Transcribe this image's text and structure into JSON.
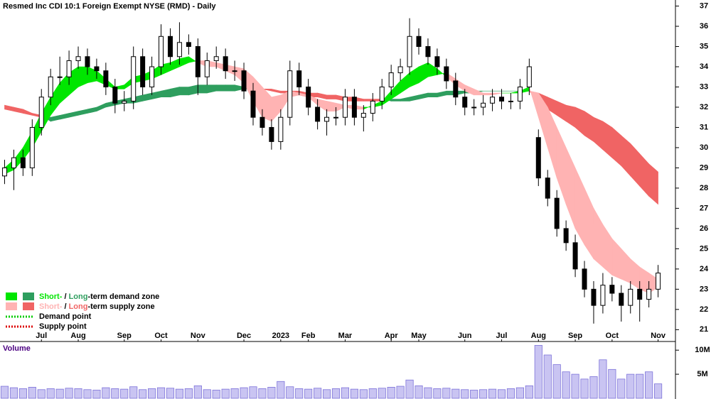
{
  "chart_data": {
    "type": "candlestick",
    "title": "Resmed Inc CDI 10:1 Foreign Exempt NYSE (RMD) - Daily",
    "categories": [
      null,
      null,
      null,
      null,
      "Jul",
      null,
      null,
      null,
      "Aug",
      null,
      null,
      null,
      null,
      "Sep",
      null,
      null,
      null,
      "Oct",
      null,
      null,
      null,
      "Nov",
      null,
      null,
      null,
      null,
      "Dec",
      null,
      null,
      null,
      "2023",
      null,
      null,
      "Feb",
      null,
      null,
      null,
      "Mar",
      null,
      null,
      null,
      null,
      "Apr",
      null,
      null,
      "May",
      null,
      null,
      null,
      null,
      "Jun",
      null,
      null,
      null,
      "Jul",
      null,
      null,
      null,
      "Aug",
      null,
      null,
      null,
      "Sep",
      null,
      null,
      null,
      "Oct",
      null,
      null,
      null,
      null,
      "Nov"
    ],
    "open": [
      28.6,
      29,
      29.5,
      29,
      31,
      32.5,
      33.5,
      33.5,
      34.3,
      34.5,
      34,
      33.8,
      33,
      32.2,
      32.3,
      34.5,
      33,
      34,
      35.5,
      34.5,
      35.2,
      35,
      33.5,
      34.3,
      34.5,
      33.8,
      33.8,
      32.8,
      31.5,
      31,
      30.3,
      31.5,
      33.8,
      33,
      32,
      31.3,
      31.5,
      31.5,
      32.5,
      31.5,
      31.7,
      32.3,
      33,
      33.7,
      34,
      35.5,
      35,
      34.5,
      34,
      33.3,
      32.5,
      32,
      32,
      32.2,
      32.5,
      32.3,
      32.3,
      33,
      30.5,
      28.5,
      27.5,
      26,
      25.3,
      24,
      23,
      22.2,
      23.2,
      22.8,
      22.2,
      23,
      22.5,
      23
    ],
    "high": [
      29.4,
      29.9,
      29.9,
      31.4,
      32.9,
      33.9,
      34.5,
      34.8,
      35,
      34.9,
      34.4,
      34.2,
      33.4,
      32.8,
      35,
      34.9,
      34.5,
      36.1,
      35.9,
      36.2,
      35.6,
      35.4,
      34.7,
      35,
      34.9,
      34.3,
      34.2,
      33.2,
      31.9,
      31.4,
      31.9,
      34.3,
      34.2,
      33.4,
      32.4,
      31.9,
      32,
      32.9,
      32.9,
      32.1,
      32.7,
      33.4,
      34.1,
      34.4,
      36.4,
      35.9,
      35.4,
      34.9,
      34.4,
      33.7,
      32.9,
      32.4,
      32.6,
      32.9,
      32.9,
      32.7,
      33.4,
      34.4,
      30.9,
      28.9,
      27.9,
      26.4,
      25.7,
      24.4,
      23.4,
      23.8,
      23.6,
      23.2,
      23.4,
      23.4,
      23.4,
      24.2
    ],
    "low": [
      28.2,
      27.9,
      28.6,
      28.6,
      30.6,
      32.1,
      33.1,
      33.1,
      33.9,
      33.6,
      33.4,
      32.6,
      31.7,
      31.8,
      31.9,
      32.6,
      32.6,
      33.6,
      34.1,
      34.1,
      34.6,
      32.6,
      33.1,
      33.9,
      33.4,
      33.3,
      32.4,
      31.1,
      30.6,
      29.9,
      29.9,
      31.1,
      32.6,
      31.6,
      30.9,
      30.6,
      31.1,
      31.1,
      31.1,
      30.8,
      31.3,
      31.9,
      32.6,
      33.3,
      33.6,
      34.6,
      34.1,
      33.6,
      32.9,
      32.1,
      31.6,
      31.6,
      31.6,
      31.8,
      31.9,
      31.9,
      31.9,
      32.6,
      28.1,
      27.1,
      25.6,
      24.9,
      23.6,
      22.6,
      21.3,
      21.8,
      22.4,
      21.4,
      21.8,
      21.4,
      22.1,
      22.6
    ],
    "close": [
      29,
      29.5,
      29,
      31,
      32.5,
      33.5,
      33.5,
      34.3,
      34.5,
      34,
      33.8,
      33,
      32.2,
      32.3,
      34.5,
      33,
      34,
      35.5,
      34.5,
      35.2,
      35,
      33.5,
      34.3,
      34.5,
      33.8,
      33.8,
      32.8,
      31.5,
      31,
      30.3,
      31.5,
      33.8,
      33,
      32,
      31.3,
      31.5,
      31.5,
      32.5,
      31.5,
      31.7,
      32.3,
      33,
      33.7,
      34,
      35.5,
      35,
      34.5,
      34,
      33.3,
      32.5,
      32,
      32,
      32.2,
      32.5,
      32.3,
      32.3,
      33,
      34,
      28.5,
      27.5,
      26,
      25.3,
      24,
      23,
      22.2,
      23.2,
      22.8,
      22.2,
      23,
      22.5,
      23,
      23.8
    ],
    "up_color": "#ffffff",
    "down_color": "#000000",
    "short_zone": {
      "fast": [
        29,
        29.4,
        30,
        30.8,
        31.7,
        32.5,
        33.2,
        33.7,
        34,
        34,
        33.8,
        33.4,
        33,
        33.1,
        33.5,
        33.6,
        33.8,
        34.1,
        34.2,
        34.4,
        34.5,
        34.2,
        34,
        34,
        33.8,
        33.6,
        33.2,
        32.3,
        31.5,
        31.3,
        31.8,
        32.5,
        32.6,
        32.5,
        32.1,
        31.8,
        31.8,
        32,
        31.9,
        31.9,
        32.1,
        32.3,
        32.8,
        33.3,
        33.7,
        34,
        34.2,
        33.9,
        33.5,
        33.1,
        32.8,
        32.6,
        32.6,
        32.6,
        32.7,
        32.7,
        32.8,
        33,
        31.5,
        30,
        28.5,
        27.2,
        26,
        25.2,
        24.5,
        24.1,
        23.7,
        23.5,
        23.3,
        23,
        22.8,
        23.1
      ],
      "slow": [
        28.7,
        28.9,
        29.4,
        30,
        30.8,
        31.6,
        32.2,
        32.6,
        33,
        33.2,
        33.3,
        33.1,
        32.9,
        32.9,
        33.2,
        33.3,
        33.4,
        33.6,
        33.8,
        34,
        34.2,
        34.3,
        34.3,
        34.2,
        34.1,
        34,
        33.9,
        33.5,
        33,
        32.5,
        32.6,
        32.8,
        32.7,
        32.6,
        32.4,
        32.3,
        32.2,
        32.1,
        32.1,
        32,
        32,
        32.1,
        32.4,
        32.7,
        33,
        33.2,
        33.5,
        33.6,
        33.7,
        33.4,
        33.1,
        32.9,
        32.7,
        32.7,
        32.7,
        32.7,
        32.7,
        32.8,
        32.7,
        32,
        31,
        30,
        29,
        28,
        27,
        26.2,
        25.5,
        25,
        24.5,
        24.1,
        23.8,
        23.5
      ],
      "demand_color": "#00e600",
      "supply_color": "#ffb3b3"
    },
    "long_zone": {
      "fast": [
        31.9,
        31.8,
        31.7,
        31.6,
        31.5,
        31.5,
        31.6,
        31.7,
        31.8,
        31.9,
        32,
        32.2,
        32.3,
        32.4,
        32.5,
        32.6,
        32.7,
        32.8,
        32.9,
        33,
        33,
        33.1,
        33.1,
        33.1,
        33.1,
        33.1,
        33,
        33,
        32.9,
        32.8,
        32.7,
        32.7,
        32.6,
        32.5,
        32.5,
        32.4,
        32.4,
        32.3,
        32.3,
        32.3,
        32.3,
        32.3,
        32.4,
        32.4,
        32.5,
        32.6,
        32.7,
        32.7,
        32.8,
        32.8,
        32.8,
        32.8,
        32.8,
        32.8,
        32.8,
        32.8,
        32.8,
        32.8,
        32.3,
        31.9,
        31.6,
        31.3,
        31,
        30.6,
        30.3,
        29.9,
        29.5,
        29.1,
        28.6,
        28.1,
        27.6,
        27.2
      ],
      "slow": [
        32.1,
        32,
        31.9,
        31.7,
        31.6,
        31.3,
        31.4,
        31.5,
        31.6,
        31.7,
        31.8,
        32,
        32.1,
        32.2,
        32.2,
        32.3,
        32.4,
        32.5,
        32.5,
        32.6,
        32.6,
        32.7,
        32.7,
        32.8,
        32.8,
        32.8,
        32.9,
        32.9,
        32.9,
        32.9,
        32.8,
        32.8,
        32.8,
        32.7,
        32.7,
        32.6,
        32.6,
        32.5,
        32.5,
        32.4,
        32.4,
        32.4,
        32.3,
        32.3,
        32.3,
        32.4,
        32.5,
        32.5,
        32.6,
        32.6,
        32.7,
        32.7,
        32.8,
        32.8,
        32.8,
        32.8,
        32.8,
        32.8,
        32.7,
        32.5,
        32.3,
        32.1,
        32,
        31.8,
        31.5,
        31.3,
        31,
        30.6,
        30.2,
        29.7,
        29.2,
        28.8
      ],
      "demand_color": "#2e9e5e",
      "supply_color": "#f06464"
    },
    "ylim": [
      20.45,
      37.3
    ],
    "yticks": [
      21,
      22,
      23,
      24,
      25,
      26,
      27,
      28,
      29,
      30,
      31,
      32,
      33,
      34,
      35,
      36,
      37
    ],
    "volume": {
      "label": "Volume",
      "values": [
        2500000,
        2200000,
        2000000,
        2300000,
        1800000,
        2000000,
        1900000,
        2100000,
        2000000,
        1800000,
        1700000,
        2200000,
        2000000,
        1900000,
        2400000,
        1800000,
        2000000,
        2200000,
        2100000,
        1900000,
        2000000,
        2600000,
        1800000,
        1700000,
        1900000,
        2000000,
        2200000,
        2400000,
        2000000,
        2300000,
        3500000,
        2400000,
        2000000,
        1900000,
        2100000,
        1800000,
        2000000,
        2200000,
        1900000,
        1800000,
        2000000,
        2100000,
        2300000,
        2500000,
        3800000,
        2600000,
        2200000,
        2000000,
        2100000,
        1900000,
        1800000,
        1700000,
        1800000,
        1900000,
        1800000,
        2000000,
        2200000,
        2600000,
        11000000,
        9000000,
        7000000,
        5500000,
        5000000,
        4000000,
        4500000,
        8000000,
        6000000,
        4000000,
        5000000,
        5000000,
        5500000,
        3000000
      ],
      "color": "#7d73d9",
      "ylim": [
        0,
        11800000
      ],
      "yticks": [
        {
          "value": 5000000,
          "label": "5M"
        },
        {
          "value": 10000000,
          "label": "10M"
        }
      ]
    },
    "legend": [
      {
        "short": "Short-",
        "sep": " / ",
        "long": "Long",
        "rest": "-term demand zone"
      },
      {
        "short": "Short-",
        "sep": " / ",
        "long": "Long",
        "rest": "-term supply zone"
      },
      {
        "label": "Demand point",
        "color": "#00cc00"
      },
      {
        "label": "Supply point",
        "color": "#dd0000"
      }
    ]
  }
}
